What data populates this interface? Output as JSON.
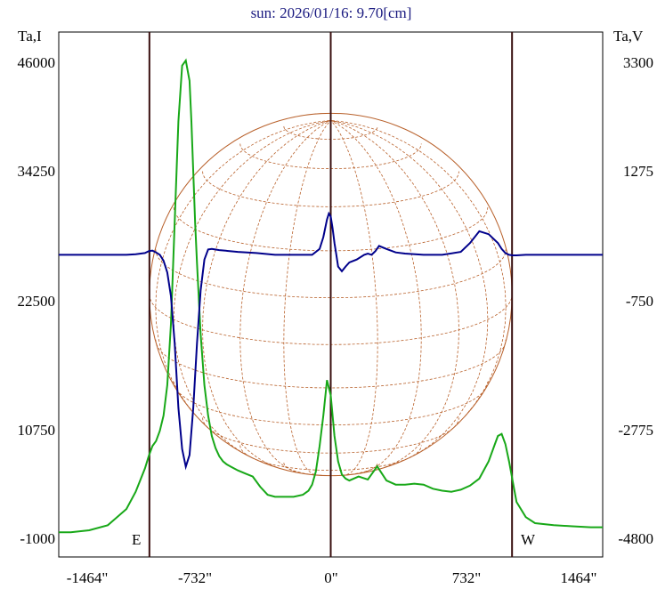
{
  "chart_data": {
    "type": "line",
    "title": "sun: 2026/01/16: 9.70[cm]",
    "left_axis_label": "Ta,I",
    "right_axis_label": "Ta,V",
    "left_ticks": [
      "46000",
      "34250",
      "22500",
      "10750",
      "-1000"
    ],
    "right_ticks": [
      "3300",
      "1275",
      "-750",
      "-2775",
      "-4800"
    ],
    "x_ticks": [
      "-1464\"",
      "-732\"",
      "0\"",
      "732\"",
      "1464\""
    ],
    "x_range": [
      -1464,
      1464
    ],
    "y_left_range": [
      -1000,
      46000
    ],
    "y_right_range": [
      -4800,
      3300
    ],
    "limb_labels": {
      "east": "E",
      "west": "W"
    },
    "vertical_markers_arcsec": [
      -976,
      0,
      976
    ],
    "disk_radius_arcsec": 976,
    "colors": {
      "intensity": "#18a818",
      "polarization": "#00008b",
      "disk_grid": "#b8602a",
      "markers": "#3a1010"
    },
    "series": [
      {
        "name": "Ta,I",
        "axis": "left",
        "x": [
          -1464,
          -1400,
          -1300,
          -1200,
          -1100,
          -1050,
          -1000,
          -980,
          -960,
          -940,
          -920,
          -900,
          -880,
          -860,
          -840,
          -820,
          -800,
          -780,
          -760,
          -750,
          -740,
          -730,
          -720,
          -700,
          -680,
          -660,
          -640,
          -620,
          -600,
          -580,
          -560,
          -540,
          -520,
          -500,
          -460,
          -420,
          -380,
          -340,
          -300,
          -250,
          -200,
          -150,
          -120,
          -100,
          -80,
          -60,
          -40,
          -20,
          0,
          20,
          40,
          60,
          80,
          100,
          150,
          200,
          250,
          300,
          350,
          400,
          450,
          500,
          550,
          600,
          650,
          700,
          750,
          800,
          850,
          880,
          900,
          920,
          940,
          960,
          980,
          1000,
          1050,
          1100,
          1200,
          1300,
          1400,
          1464
        ],
        "values": [
          -500,
          -500,
          -300,
          200,
          1800,
          3500,
          5800,
          7000,
          8000,
          8500,
          9500,
          11000,
          14000,
          20000,
          30000,
          40000,
          45500,
          46000,
          44000,
          40000,
          35000,
          30000,
          26000,
          19000,
          14000,
          11000,
          9000,
          7800,
          7000,
          6500,
          6200,
          6000,
          5800,
          5600,
          5300,
          5000,
          4000,
          3200,
          3000,
          3000,
          3000,
          3200,
          3600,
          4200,
          5500,
          8000,
          11000,
          14500,
          13000,
          9000,
          6500,
          5200,
          4800,
          4600,
          5000,
          4700,
          6000,
          4600,
          4200,
          4200,
          4300,
          4200,
          3800,
          3600,
          3500,
          3700,
          4100,
          4800,
          6500,
          8000,
          9000,
          9200,
          8200,
          6500,
          4500,
          2500,
          1000,
          400,
          200,
          100,
          0,
          0
        ]
      },
      {
        "name": "Ta,V",
        "axis": "right",
        "x": [
          -1464,
          -1300,
          -1100,
          -1050,
          -1000,
          -980,
          -960,
          -940,
          -920,
          -900,
          -880,
          -860,
          -840,
          -820,
          -800,
          -780,
          -760,
          -740,
          -720,
          -700,
          -680,
          -660,
          -640,
          -600,
          -500,
          -400,
          -300,
          -200,
          -100,
          -60,
          -40,
          -20,
          -10,
          0,
          10,
          20,
          30,
          40,
          60,
          80,
          100,
          140,
          180,
          200,
          220,
          240,
          260,
          300,
          350,
          400,
          500,
          600,
          700,
          750,
          800,
          850,
          900,
          920,
          940,
          960,
          980,
          1000,
          1050,
          1100,
          1200,
          1300,
          1464
        ],
        "values": [
          0,
          0,
          0,
          10,
          30,
          60,
          70,
          40,
          0,
          -100,
          -300,
          -700,
          -1500,
          -2600,
          -3300,
          -3600,
          -3400,
          -2600,
          -1500,
          -600,
          -80,
          90,
          100,
          80,
          50,
          30,
          0,
          0,
          0,
          100,
          300,
          600,
          700,
          650,
          450,
          200,
          0,
          -200,
          -280,
          -200,
          -130,
          -80,
          0,
          20,
          0,
          60,
          150,
          100,
          40,
          20,
          0,
          0,
          50,
          200,
          400,
          350,
          200,
          100,
          30,
          0,
          -10,
          -10,
          0,
          0,
          0,
          0,
          0
        ]
      }
    ]
  }
}
